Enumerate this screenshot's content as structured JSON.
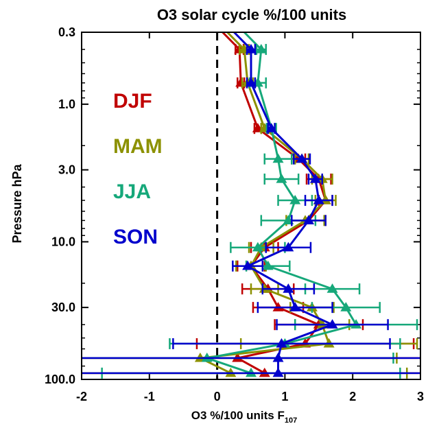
{
  "chart_data": {
    "type": "line",
    "title": "O3 solar cycle %/100 units",
    "xlabel": "O3 %/100 units F",
    "xlabel_sub": "107",
    "ylabel": "Pressure hPa",
    "xlim": [
      -2,
      3
    ],
    "ylim": [
      100,
      0.3
    ],
    "y_scale": "log",
    "x_ticks": [
      "-2",
      "-1",
      "0",
      "1",
      "2",
      "3"
    ],
    "y_ticks": [
      "0.3",
      "1.0",
      "3.0",
      "10.0",
      "30.0",
      "100.0"
    ],
    "zero_line": "dashed",
    "legend_placement": "left, inside plot",
    "series": [
      {
        "name": "DJF",
        "color": "#c00000",
        "points": [
          {
            "p": 0.4,
            "x": 0.33,
            "err": 0.06
          },
          {
            "p": 0.7,
            "x": 0.35,
            "err": 0.05
          },
          {
            "p": 1.5,
            "x": 0.6,
            "err": 0.05
          },
          {
            "p": 2.5,
            "x": 1.2,
            "err": 0.1
          },
          {
            "p": 3.5,
            "x": 1.5,
            "err": 0.18
          },
          {
            "p": 5,
            "x": 1.6,
            "err": 0.1
          },
          {
            "p": 7,
            "x": 1.35,
            "err": 0.25
          },
          {
            "p": 11,
            "x": 0.7,
            "err": 0.2
          },
          {
            "p": 15,
            "x": 0.5,
            "err": 0.2
          },
          {
            "p": 22,
            "x": 0.75,
            "err": 0.38
          },
          {
            "p": 30,
            "x": 0.9,
            "err": 0.37
          },
          {
            "p": 40,
            "x": 1.5,
            "err": 0.65
          },
          {
            "p": 55,
            "x": 1.3,
            "err": 1.6
          },
          {
            "p": 70,
            "x": 0.3,
            "err": 4.7
          },
          {
            "p": 90,
            "x": 0.7,
            "err": 4.3
          }
        ]
      },
      {
        "name": "MAM",
        "color": "#8c9100",
        "points": [
          {
            "p": 0.4,
            "x": 0.4,
            "err": 0.07
          },
          {
            "p": 0.7,
            "x": 0.45,
            "err": 0.08
          },
          {
            "p": 1.5,
            "x": 0.7,
            "err": 0.05
          },
          {
            "p": 2.5,
            "x": 1.25,
            "err": 0.1
          },
          {
            "p": 3.5,
            "x": 1.55,
            "err": 0.15
          },
          {
            "p": 5,
            "x": 1.6,
            "err": 0.15
          },
          {
            "p": 7,
            "x": 1.3,
            "err": 0.28
          },
          {
            "p": 11,
            "x": 0.65,
            "err": 0.18
          },
          {
            "p": 15,
            "x": 0.5,
            "err": 0.22
          },
          {
            "p": 22,
            "x": 0.7,
            "err": 0.2
          },
          {
            "p": 30,
            "x": 1.4,
            "err": 0.32
          },
          {
            "p": 40,
            "x": 1.55,
            "err": 0.4
          },
          {
            "p": 55,
            "x": 1.65,
            "err": 1.3
          },
          {
            "p": 70,
            "x": -0.25,
            "err": 2.9
          },
          {
            "p": 90,
            "x": 0.2,
            "err": 2.6
          }
        ]
      },
      {
        "name": "JJA",
        "color": "#16a87a",
        "points": [
          {
            "p": 0.4,
            "x": 0.65,
            "err": 0.07
          },
          {
            "p": 0.7,
            "x": 0.6,
            "err": 0.12
          },
          {
            "p": 1.5,
            "x": 0.8,
            "err": 0.07
          },
          {
            "p": 2.5,
            "x": 0.9,
            "err": 0.2
          },
          {
            "p": 3.5,
            "x": 0.95,
            "err": 0.25
          },
          {
            "p": 5,
            "x": 1.15,
            "err": 0.25
          },
          {
            "p": 7,
            "x": 1.05,
            "err": 0.4
          },
          {
            "p": 11,
            "x": 0.6,
            "err": 0.4
          },
          {
            "p": 15,
            "x": 0.75,
            "err": 0.32
          },
          {
            "p": 22,
            "x": 1.7,
            "err": 0.4
          },
          {
            "p": 30,
            "x": 1.9,
            "err": 0.5
          },
          {
            "p": 40,
            "x": 2.05,
            "err": 0.9
          },
          {
            "p": 55,
            "x": 1.0,
            "err": 1.7
          },
          {
            "p": 70,
            "x": -0.15,
            "err": 2.75
          },
          {
            "p": 90,
            "x": 0.5,
            "err": 2.2
          }
        ]
      },
      {
        "name": "SON",
        "color": "#0000cc",
        "points": [
          {
            "p": 0.4,
            "x": 0.5,
            "err": 0.06
          },
          {
            "p": 0.7,
            "x": 0.5,
            "err": 0.06
          },
          {
            "p": 1.5,
            "x": 0.8,
            "err": 0.05
          },
          {
            "p": 2.5,
            "x": 1.25,
            "err": 0.12
          },
          {
            "p": 3.5,
            "x": 1.45,
            "err": 0.1
          },
          {
            "p": 5,
            "x": 1.5,
            "err": 0.2
          },
          {
            "p": 7,
            "x": 1.35,
            "err": 0.25
          },
          {
            "p": 11,
            "x": 1.05,
            "err": 0.33
          },
          {
            "p": 15,
            "x": 0.45,
            "err": 0.22
          },
          {
            "p": 22,
            "x": 1.05,
            "err": 0.38
          },
          {
            "p": 30,
            "x": 1.15,
            "err": 0.55
          },
          {
            "p": 40,
            "x": 1.7,
            "err": 0.82
          },
          {
            "p": 55,
            "x": 0.95,
            "err": 1.6
          },
          {
            "p": 70,
            "x": 0.9,
            "err": 3.5
          },
          {
            "p": 90,
            "x": 0.9,
            "err": 3.0
          }
        ]
      }
    ]
  }
}
